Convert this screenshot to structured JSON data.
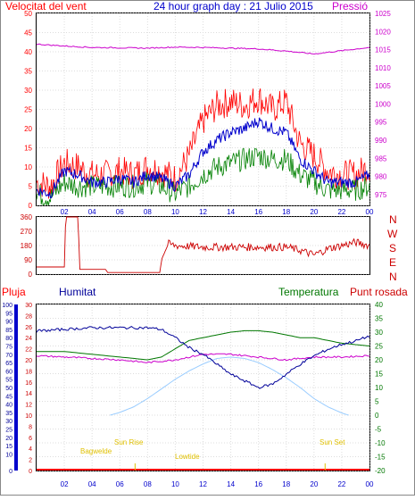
{
  "header": {
    "wind_label": "Velocitat del vent",
    "title": "24 hour graph day : 21 Julio 2015",
    "pressure_label": "Pressió"
  },
  "lower_header": {
    "rain_label": "Pluja",
    "humidity_label": "Humitat",
    "temperature_label": "Temperatura",
    "dewpoint_label": "Punt rosada"
  },
  "compass": [
    "N",
    "W",
    "S",
    "E",
    "N"
  ],
  "colors": {
    "wind_gust": "#ff0000",
    "wind_avg": "#0000cc",
    "wind_low": "#008000",
    "pressure": "#cc00cc",
    "direction": "#cc0000",
    "humidity": "#000099",
    "temperature": "#007700",
    "dewpoint": "#cc00cc",
    "solar": "#99ccff",
    "rain": "#ff0000",
    "astro": "#e0c000",
    "frame": "#000000"
  },
  "astro_labels": [
    "Bagwelde",
    "Sun Rise",
    "Lowtide",
    "Sun Set"
  ],
  "chart_data": [
    {
      "type": "line",
      "name": "wind-and-pressure",
      "x_ticks": [
        "02",
        "04",
        "06",
        "08",
        "10",
        "12",
        "14",
        "16",
        "18",
        "20",
        "22",
        "00"
      ],
      "y_left": {
        "label": "Velocitat del vent",
        "ticks": [
          0,
          5,
          10,
          15,
          20,
          25,
          30,
          35,
          40,
          45,
          50
        ],
        "range": [
          0,
          50
        ]
      },
      "y_right": {
        "label": "Pressió",
        "ticks": [
          975,
          980,
          985,
          990,
          995,
          1000,
          1005,
          1010,
          1015,
          1020,
          1025
        ],
        "range": [
          972,
          1025
        ]
      },
      "x_range": [
        0,
        24
      ],
      "series": [
        {
          "key": "gust",
          "x": [
            0,
            1,
            2,
            3,
            4,
            5,
            6,
            7,
            8,
            9,
            10,
            11,
            12,
            13,
            14,
            15,
            16,
            17,
            18,
            19,
            20,
            21,
            22,
            23,
            24
          ],
          "values": [
            6,
            5,
            11,
            10,
            8,
            8,
            9,
            8,
            10,
            9,
            7,
            13,
            22,
            26,
            27,
            26,
            28,
            25,
            27,
            16,
            13,
            9,
            8,
            8,
            10
          ]
        },
        {
          "key": "avg",
          "x": [
            0,
            1,
            2,
            3,
            4,
            5,
            6,
            7,
            8,
            9,
            10,
            11,
            12,
            13,
            14,
            15,
            16,
            17,
            18,
            19,
            20,
            21,
            22,
            23,
            24
          ],
          "values": [
            4,
            3,
            9,
            8,
            6,
            6,
            7,
            6,
            8,
            7,
            5,
            8,
            14,
            17,
            19,
            20,
            22,
            20,
            19,
            12,
            9,
            6,
            6,
            6,
            8
          ]
        },
        {
          "key": "low",
          "x": [
            0,
            1,
            2,
            3,
            4,
            5,
            6,
            7,
            8,
            9,
            10,
            11,
            12,
            13,
            14,
            15,
            16,
            17,
            18,
            19,
            20,
            21,
            22,
            23,
            24
          ],
          "values": [
            3,
            2,
            6,
            5,
            5,
            5,
            5,
            5,
            6,
            5,
            3,
            5,
            8,
            10,
            11,
            12,
            13,
            12,
            12,
            8,
            6,
            4,
            4,
            4,
            5
          ]
        },
        {
          "key": "pressure",
          "x": [
            0,
            2,
            4,
            6,
            8,
            10,
            12,
            14,
            16,
            18,
            20,
            22,
            24
          ],
          "values": [
            1016.5,
            1016,
            1015.6,
            1015.5,
            1015.4,
            1015.7,
            1015.6,
            1015.4,
            1015.2,
            1014.6,
            1013.8,
            1014.7,
            1015.6
          ]
        }
      ]
    },
    {
      "type": "line",
      "name": "wind-direction",
      "x_range": [
        0,
        24
      ],
      "y_ticks": [
        0,
        90,
        180,
        270,
        360
      ],
      "y_range": [
        0,
        360
      ],
      "series": [
        {
          "key": "direction",
          "x": [
            0,
            1,
            2,
            2.1,
            3,
            3.1,
            5,
            5.1,
            8,
            8.9,
            9,
            9.5,
            10,
            12,
            14,
            16,
            18,
            19,
            20,
            21,
            22,
            23,
            24
          ],
          "values": [
            45,
            45,
            45,
            360,
            360,
            30,
            30,
            10,
            10,
            10,
            90,
            190,
            180,
            170,
            170,
            170,
            170,
            150,
            120,
            160,
            180,
            200,
            180
          ]
        }
      ]
    },
    {
      "type": "line",
      "name": "humidity-temperature",
      "x_ticks": [
        "02",
        "04",
        "06",
        "08",
        "10",
        "12",
        "14",
        "16",
        "18",
        "20",
        "22",
        "00"
      ],
      "y_rain_ticks": [
        0,
        10,
        15,
        20,
        25,
        30,
        35,
        40,
        45,
        50,
        55,
        60,
        65,
        70,
        75,
        80,
        85,
        90,
        95,
        100
      ],
      "y_humidity_ticks": [
        0,
        2,
        4,
        6,
        8,
        10,
        12,
        14,
        16,
        18,
        20,
        22,
        24,
        26,
        28,
        30
      ],
      "y_temp_ticks": [
        -20,
        -15,
        -10,
        -5,
        0,
        5,
        10,
        15,
        20,
        25,
        30,
        35,
        40
      ],
      "x_range": [
        0,
        24
      ],
      "series": [
        {
          "key": "humidity",
          "x": [
            0,
            2,
            4,
            6,
            8,
            9,
            10,
            11,
            12,
            13,
            14,
            15,
            16,
            17,
            18,
            19,
            20,
            21,
            22,
            23,
            24
          ],
          "values": [
            84,
            85,
            86,
            86,
            86,
            85,
            80,
            74,
            70,
            64,
            58,
            54,
            50,
            52,
            58,
            64,
            69,
            73,
            76,
            78,
            81
          ]
        },
        {
          "key": "temperature",
          "x": [
            0,
            2,
            4,
            6,
            8,
            9,
            10,
            11,
            12,
            13,
            14,
            15,
            16,
            17,
            18,
            19,
            20,
            21,
            22,
            23,
            24
          ],
          "values": [
            23,
            23,
            22,
            21,
            20,
            21,
            24,
            27,
            28,
            29,
            30,
            30.5,
            30.5,
            30,
            29,
            28,
            28,
            27,
            26,
            25.5,
            25
          ]
        },
        {
          "key": "dewpoint",
          "x": [
            0,
            2,
            4,
            6,
            8,
            10,
            12,
            14,
            16,
            18,
            20,
            22,
            24
          ],
          "values": [
            21.5,
            21,
            20.5,
            20,
            19,
            20,
            22,
            22,
            21,
            20,
            21,
            21,
            21.5
          ]
        },
        {
          "key": "solar",
          "x": [
            5.3,
            6,
            7,
            8,
            9,
            10,
            11,
            12,
            13,
            14,
            15,
            16,
            17,
            18,
            19,
            20,
            21,
            22,
            22.5
          ],
          "values": [
            0,
            1,
            3,
            6,
            9.5,
            13,
            16,
            18.5,
            20.5,
            21,
            20.5,
            19,
            16.5,
            13.5,
            10,
            6,
            3,
            0.8,
            0
          ]
        },
        {
          "key": "rain",
          "x": [
            0,
            24
          ],
          "values": [
            0,
            0
          ]
        }
      ]
    }
  ]
}
